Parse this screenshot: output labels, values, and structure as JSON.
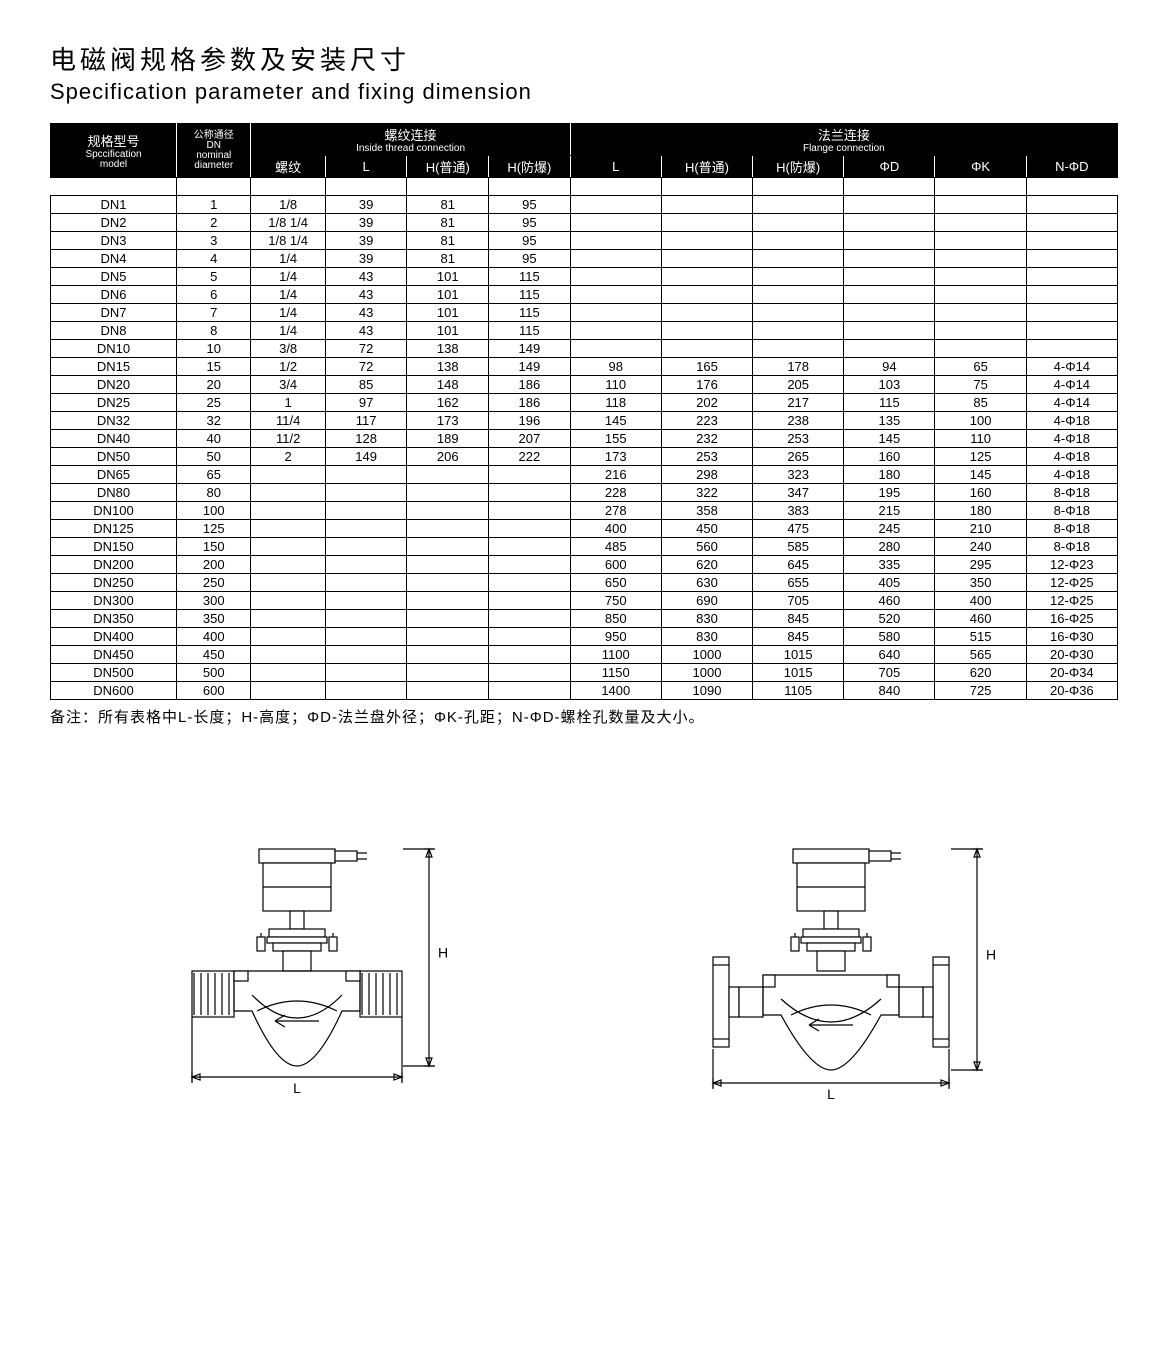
{
  "title_cn": "电磁阀规格参数及安装尺寸",
  "title_en": "Specification parameter and fixing dimension",
  "header": {
    "model_cn": "规格型号",
    "model_en": "Spccification",
    "model_en2": "model",
    "dn_cn": "公称通径",
    "dn_dn": "DN",
    "dn_en1": "nominal",
    "dn_en2": "diameter",
    "thread_cn": "螺纹连接",
    "thread_en": "Inside thread connection",
    "flange_cn": "法兰连接",
    "flange_en": "Flange connection",
    "sub": {
      "thread": "螺纹",
      "L": "L",
      "H_normal": "H(普通)",
      "H_ex": "H(防爆)",
      "phiD": "ΦD",
      "phiK": "ΦK",
      "N_phiD": "N-ΦD"
    }
  },
  "col_widths_pct": [
    10.5,
    6.2,
    6.2,
    6.8,
    6.8,
    6.8,
    7.6,
    7.6,
    7.6,
    7.6,
    7.6,
    7.6
  ],
  "rows": [
    [
      "DN1",
      "1",
      "1/8",
      "39",
      "81",
      "95",
      "",
      "",
      "",
      "",
      "",
      ""
    ],
    [
      "DN2",
      "2",
      "1/8 1/4",
      "39",
      "81",
      "95",
      "",
      "",
      "",
      "",
      "",
      ""
    ],
    [
      "DN3",
      "3",
      "1/8 1/4",
      "39",
      "81",
      "95",
      "",
      "",
      "",
      "",
      "",
      ""
    ],
    [
      "DN4",
      "4",
      "1/4",
      "39",
      "81",
      "95",
      "",
      "",
      "",
      "",
      "",
      ""
    ],
    [
      "DN5",
      "5",
      "1/4",
      "43",
      "101",
      "115",
      "",
      "",
      "",
      "",
      "",
      ""
    ],
    [
      "DN6",
      "6",
      "1/4",
      "43",
      "101",
      "115",
      "",
      "",
      "",
      "",
      "",
      ""
    ],
    [
      "DN7",
      "7",
      "1/4",
      "43",
      "101",
      "115",
      "",
      "",
      "",
      "",
      "",
      ""
    ],
    [
      "DN8",
      "8",
      "1/4",
      "43",
      "101",
      "115",
      "",
      "",
      "",
      "",
      "",
      ""
    ],
    [
      "DN10",
      "10",
      "3/8",
      "72",
      "138",
      "149",
      "",
      "",
      "",
      "",
      "",
      ""
    ],
    [
      "DN15",
      "15",
      "1/2",
      "72",
      "138",
      "149",
      "98",
      "165",
      "178",
      "94",
      "65",
      "4-Φ14"
    ],
    [
      "DN20",
      "20",
      "3/4",
      "85",
      "148",
      "186",
      "110",
      "176",
      "205",
      "103",
      "75",
      "4-Φ14"
    ],
    [
      "DN25",
      "25",
      "1",
      "97",
      "162",
      "186",
      "118",
      "202",
      "217",
      "115",
      "85",
      "4-Φ14"
    ],
    [
      "DN32",
      "32",
      "11/4",
      "117",
      "173",
      "196",
      "145",
      "223",
      "238",
      "135",
      "100",
      "4-Φ18"
    ],
    [
      "DN40",
      "40",
      "11/2",
      "128",
      "189",
      "207",
      "155",
      "232",
      "253",
      "145",
      "110",
      "4-Φ18"
    ],
    [
      "DN50",
      "50",
      "2",
      "149",
      "206",
      "222",
      "173",
      "253",
      "265",
      "160",
      "125",
      "4-Φ18"
    ],
    [
      "DN65",
      "65",
      "",
      "",
      "",
      "",
      "216",
      "298",
      "323",
      "180",
      "145",
      "4-Φ18"
    ],
    [
      "DN80",
      "80",
      "",
      "",
      "",
      "",
      "228",
      "322",
      "347",
      "195",
      "160",
      "8-Φ18"
    ],
    [
      "DN100",
      "100",
      "",
      "",
      "",
      "",
      "278",
      "358",
      "383",
      "215",
      "180",
      "8-Φ18"
    ],
    [
      "DN125",
      "125",
      "",
      "",
      "",
      "",
      "400",
      "450",
      "475",
      "245",
      "210",
      "8-Φ18"
    ],
    [
      "DN150",
      "150",
      "",
      "",
      "",
      "",
      "485",
      "560",
      "585",
      "280",
      "240",
      "8-Φ18"
    ],
    [
      "DN200",
      "200",
      "",
      "",
      "",
      "",
      "600",
      "620",
      "645",
      "335",
      "295",
      "12-Φ23"
    ],
    [
      "DN250",
      "250",
      "",
      "",
      "",
      "",
      "650",
      "630",
      "655",
      "405",
      "350",
      "12-Φ25"
    ],
    [
      "DN300",
      "300",
      "",
      "",
      "",
      "",
      "750",
      "690",
      "705",
      "460",
      "400",
      "12-Φ25"
    ],
    [
      "DN350",
      "350",
      "",
      "",
      "",
      "",
      "850",
      "830",
      "845",
      "520",
      "460",
      "16-Φ25"
    ],
    [
      "DN400",
      "400",
      "",
      "",
      "",
      "",
      "950",
      "830",
      "845",
      "580",
      "515",
      "16-Φ30"
    ],
    [
      "DN450",
      "450",
      "",
      "",
      "",
      "",
      "1100",
      "1000",
      "1015",
      "640",
      "565",
      "20-Φ30"
    ],
    [
      "DN500",
      "500",
      "",
      "",
      "",
      "",
      "1150",
      "1000",
      "1015",
      "705",
      "620",
      "20-Φ34"
    ],
    [
      "DN600",
      "600",
      "",
      "",
      "",
      "",
      "1400",
      "1090",
      "1105",
      "840",
      "725",
      "20-Φ36"
    ]
  ],
  "note": "备注：所有表格中L-长度；H-高度；ΦD-法兰盘外径；ΦK-孔距；N-ΦD-螺栓孔数量及大小。",
  "diagram": {
    "stroke": "#000000",
    "fill": "#ffffff",
    "stroke_width": 1.2,
    "label_L": "L",
    "label_H": "H"
  }
}
